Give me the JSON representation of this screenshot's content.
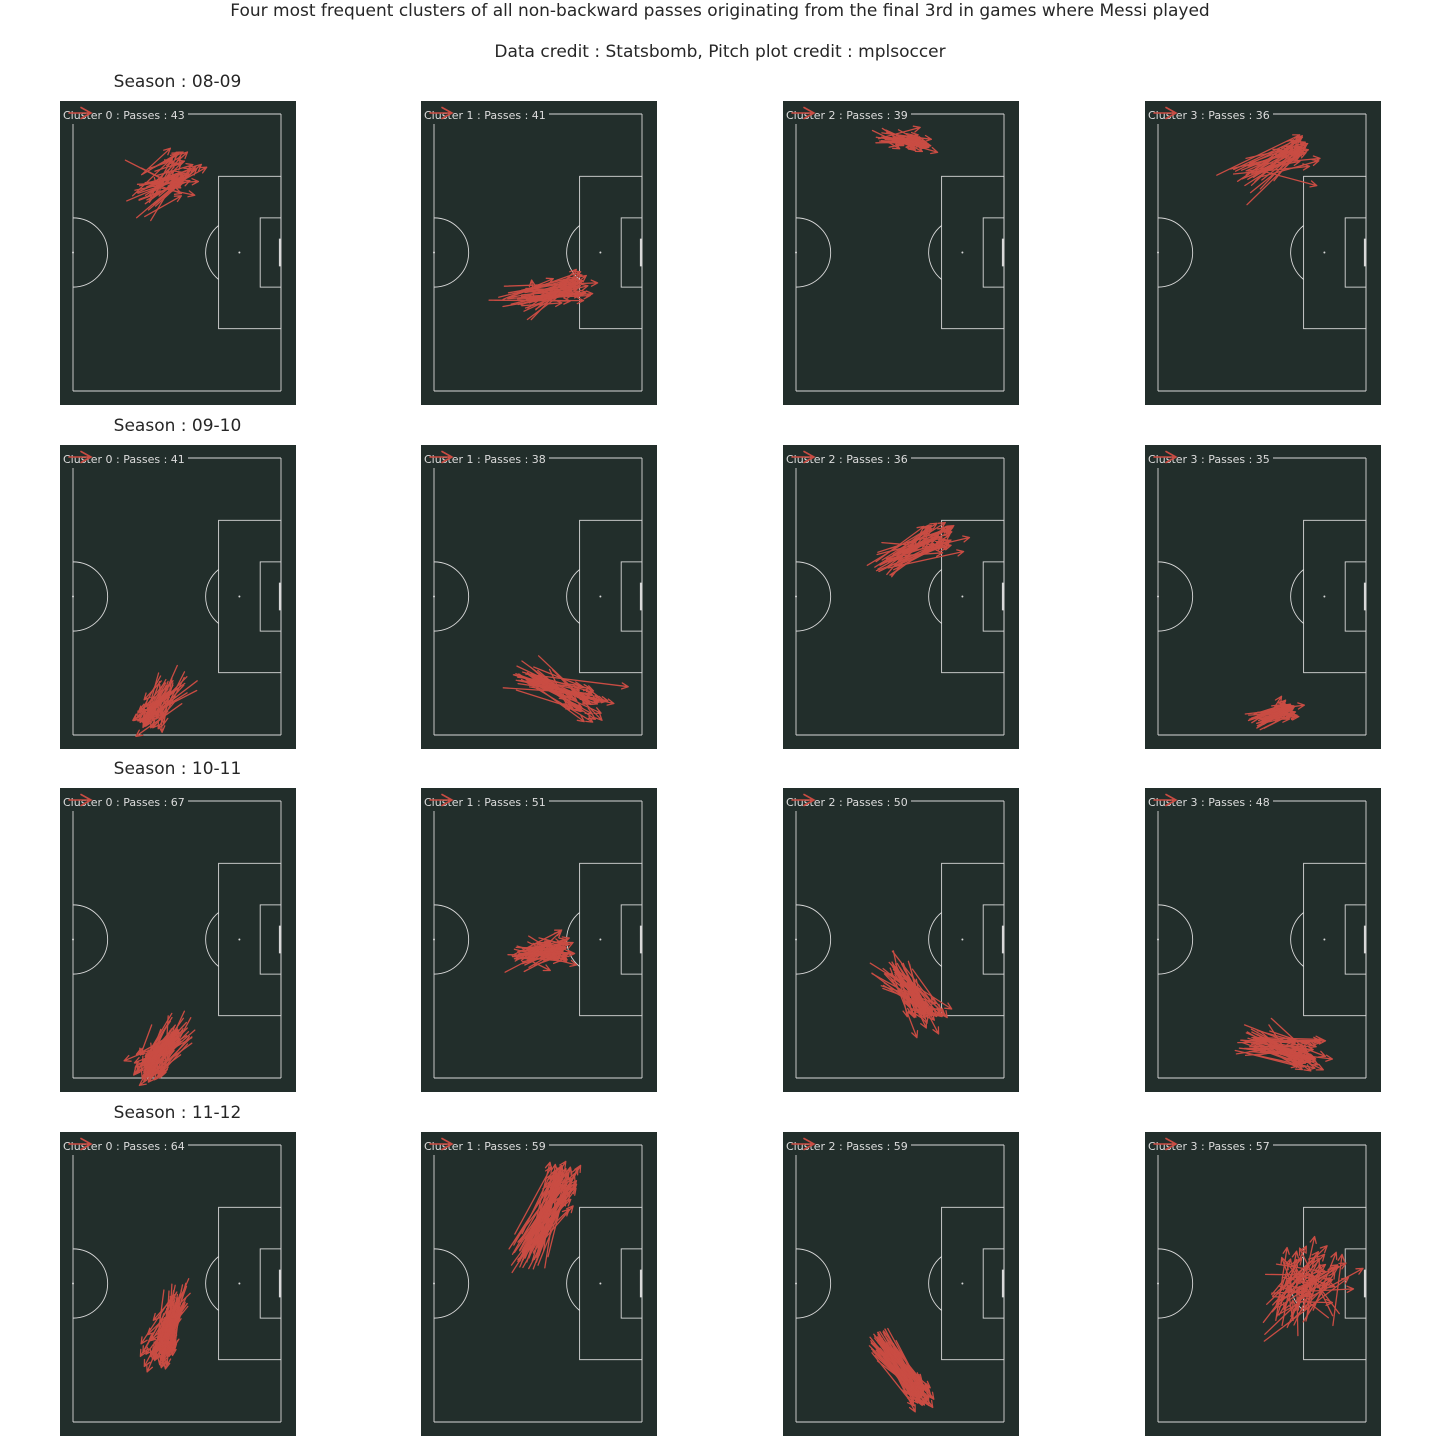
{
  "title": "Four most frequent clusters of all non-backward passes originating from the final 3rd in games where Messi played",
  "subtitle": "Data credit : Statsbomb, Pitch plot credit : mplsoccer",
  "colors": {
    "pitch": "#222e2b",
    "lines": "#d8d8d8",
    "arrows": "#c94c43",
    "text": "#262626",
    "legend_text": "#dcdcdc"
  },
  "pitch": {
    "length": 120,
    "width": 80,
    "view_x_min": 57,
    "view_x_max": 122.5
  },
  "seasons": [
    {
      "title": "Season : 08-09",
      "clusters": [
        {
          "label": "Cluster 0 : Passes : 43",
          "count": 43,
          "start": [
            80.5,
            57.5
          ],
          "end": [
            92.0,
            63.0
          ],
          "spread": [
            2.5,
            3.5
          ]
        },
        {
          "label": "Cluster 1 : Passes : 41",
          "count": 41,
          "start": [
            85.5,
            26.0
          ],
          "end": [
            100.5,
            29.5
          ],
          "spread": [
            3.5,
            2.5
          ]
        },
        {
          "label": "Cluster 2 : Passes : 39",
          "count": 39,
          "start": [
            86.0,
            73.0
          ],
          "end": [
            95.0,
            71.5
          ],
          "spread": [
            2.5,
            1.2
          ]
        },
        {
          "label": "Cluster 3 : Passes : 36",
          "count": 36,
          "start": [
            87.0,
            62.5
          ],
          "end": [
            101.0,
            70.0
          ],
          "spread": [
            3.0,
            2.5
          ]
        }
      ]
    },
    {
      "title": "Season : 09-10",
      "clusters": [
        {
          "label": "Cluster 0 : Passes : 41",
          "count": 41,
          "start": [
            89.0,
            14.5
          ],
          "end": [
            82.0,
            4.5
          ],
          "spread": [
            2.5,
            2.0
          ]
        },
        {
          "label": "Cluster 1 : Passes : 38",
          "count": 38,
          "start": [
            87.0,
            16.5
          ],
          "end": [
            103.5,
            10.0
          ],
          "spread": [
            3.5,
            2.5
          ]
        },
        {
          "label": "Cluster 2 : Passes : 36",
          "count": 36,
          "start": [
            86.0,
            50.5
          ],
          "end": [
            102.5,
            57.0
          ],
          "spread": [
            3.0,
            2.5
          ]
        },
        {
          "label": "Cluster 3 : Passes : 35",
          "count": 35,
          "start": [
            89.0,
            4.5
          ],
          "end": [
            98.0,
            7.0
          ],
          "spread": [
            2.0,
            1.5
          ]
        }
      ]
    },
    {
      "title": "Season : 10-11",
      "clusters": [
        {
          "label": "Cluster 0 : Passes : 67",
          "count": 67,
          "start": [
            90.0,
            12.5
          ],
          "end": [
            82.0,
            2.5
          ],
          "spread": [
            2.5,
            2.5
          ]
        },
        {
          "label": "Cluster 1 : Passes : 51",
          "count": 51,
          "start": [
            85.5,
            35.0
          ],
          "end": [
            96.0,
            37.5
          ],
          "spread": [
            2.5,
            2.5
          ]
        },
        {
          "label": "Cluster 2 : Passes : 50",
          "count": 50,
          "start": [
            88.0,
            30.5
          ],
          "end": [
            98.0,
            19.0
          ],
          "spread": [
            3.0,
            2.5
          ]
        },
        {
          "label": "Cluster 3 : Passes : 48",
          "count": 48,
          "start": [
            87.5,
            10.5
          ],
          "end": [
            103.0,
            6.0
          ],
          "spread": [
            3.0,
            2.5
          ]
        }
      ]
    },
    {
      "title": "Season : 11-12",
      "clusters": [
        {
          "label": "Cluster 0 : Passes : 64",
          "count": 64,
          "start": [
            89.5,
            34.5
          ],
          "end": [
            85.5,
            20.0
          ],
          "spread": [
            2.0,
            3.0
          ]
        },
        {
          "label": "Cluster 1 : Passes : 59",
          "count": 59,
          "start": [
            86.5,
            48.5
          ],
          "end": [
            97.5,
            70.0
          ],
          "spread": [
            2.5,
            3.0
          ]
        },
        {
          "label": "Cluster 2 : Passes : 59",
          "count": 59,
          "start": [
            84.5,
            23.5
          ],
          "end": [
            95.5,
            7.5
          ],
          "spread": [
            2.0,
            2.0
          ]
        },
        {
          "label": "Cluster 3 : Passes : 57",
          "count": 57,
          "start": [
            97.5,
            34.0
          ],
          "end": [
            105.0,
            43.0
          ],
          "spread": [
            5.0,
            5.0
          ]
        }
      ]
    }
  ]
}
